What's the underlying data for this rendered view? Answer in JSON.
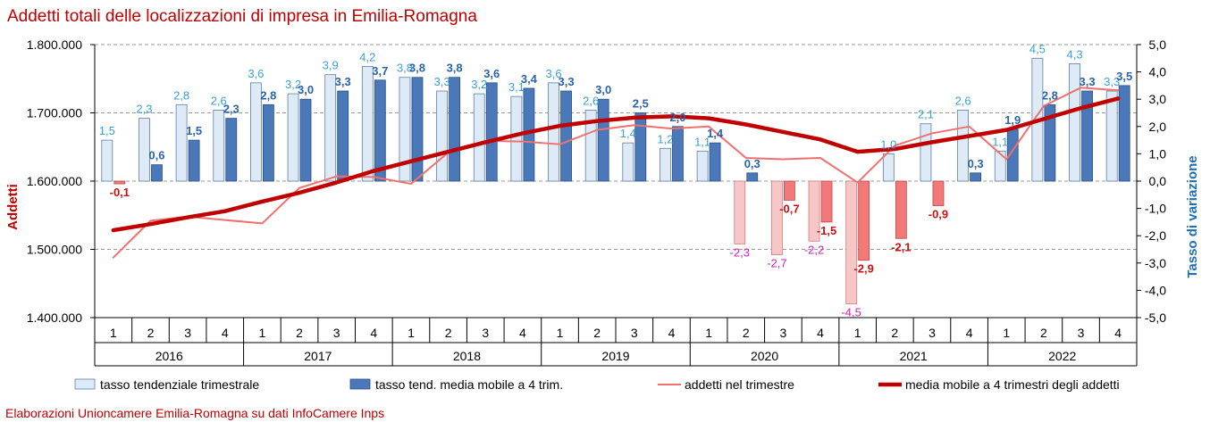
{
  "chart_data": {
    "type": "bar",
    "title": "Addetti totali delle localizzazioni di impresa in Emilia-Romagna",
    "ylabel": "Addetti",
    "y2label": "Tasso di variazione",
    "ylim": [
      1400000,
      1800000
    ],
    "y2lim": [
      -5,
      5
    ],
    "yticks": [
      "1.800.000",
      "1.700.000",
      "1.600.000",
      "1.500.000",
      "1.400.000"
    ],
    "y2ticks": [
      "5,0",
      "4,0",
      "3,0",
      "2,0",
      "1,0",
      "0,0",
      "-1,0",
      "-2,0",
      "-3,0",
      "-4,0",
      "-5,0"
    ],
    "quarters": [
      "1",
      "2",
      "3",
      "4",
      "1",
      "2",
      "3",
      "4",
      "1",
      "2",
      "3",
      "4",
      "1",
      "2",
      "3",
      "4",
      "1",
      "2",
      "3",
      "4",
      "1",
      "2",
      "3",
      "4",
      "1",
      "2",
      "3",
      "4"
    ],
    "years": [
      "2016",
      "2017",
      "2018",
      "2019",
      "2020",
      "2021",
      "2022"
    ],
    "grid": true,
    "legend_position": "bottom",
    "series": [
      {
        "name": "tasso tendenziale trimestrale",
        "kind": "bar",
        "axis": "right",
        "values": [
          1.5,
          2.3,
          2.8,
          2.6,
          3.6,
          3.2,
          3.9,
          4.2,
          3.8,
          3.3,
          3.2,
          3.1,
          3.6,
          2.6,
          1.4,
          1.2,
          1.1,
          -2.3,
          -2.7,
          -2.2,
          -4.5,
          1.0,
          2.1,
          2.6,
          1.1,
          4.5,
          4.3,
          3.3
        ],
        "labels": [
          "1,5",
          "2,3",
          "2,8",
          "2,6",
          "3,6",
          "3,2",
          "3,9",
          "4,2",
          "3,8",
          "3,3",
          "3,2",
          "3,1",
          "3,6",
          "2,6",
          "1,4",
          "1,2",
          "1,1",
          "-2,3",
          "-2,7",
          "-2,2",
          "-4,5",
          "1,0",
          "2,1",
          "2,6",
          "1,1",
          "4,5",
          "4,3",
          "3,3"
        ],
        "color_pos": "#deebf7",
        "color_neg": "#f7c6c6"
      },
      {
        "name": "tasso tend. media mobile a 4 trim.",
        "kind": "bar",
        "axis": "right",
        "values": [
          -0.1,
          0.6,
          1.5,
          2.3,
          2.8,
          3.0,
          3.3,
          3.7,
          3.8,
          3.8,
          3.6,
          3.4,
          3.3,
          3.0,
          2.5,
          2.0,
          1.4,
          0.3,
          -0.7,
          -1.5,
          -2.9,
          -2.1,
          -0.9,
          0.3,
          1.9,
          2.8,
          3.3,
          3.5
        ],
        "labels": [
          "-0,1",
          "0,6",
          "1,5",
          "2,3",
          "2,8",
          "3,0",
          "3,3",
          "3,7",
          "3,8",
          "3,8",
          "3,6",
          "3,4",
          "3,3",
          "3,0",
          "2,5",
          "2,0",
          "1,4",
          "0,3",
          "-0,7",
          "-1,5",
          "-2,9",
          "-2,1",
          "-0,9",
          "0,3",
          "1,9",
          "2,8",
          "3,3",
          "3,5"
        ],
        "color_pos": "#4a78b8",
        "color_neg": "#f27979"
      },
      {
        "name": "addetti nel trimestre",
        "kind": "line",
        "axis": "left",
        "values": [
          1488000,
          1542000,
          1548000,
          1543000,
          1538000,
          1590000,
          1607000,
          1606000,
          1596000,
          1642000,
          1659000,
          1658000,
          1654000,
          1675000,
          1682000,
          1677000,
          1680000,
          1634000,
          1632000,
          1634000,
          1598000,
          1652000,
          1670000,
          1680000,
          1632000,
          1710000,
          1737000,
          1733000
        ],
        "color": "#f07070"
      },
      {
        "name": "media mobile a 4 trimestri degli addetti",
        "kind": "line",
        "axis": "left",
        "values": [
          1528000,
          1537000,
          1547000,
          1556000,
          1570000,
          1583000,
          1598000,
          1615000,
          1629000,
          1643000,
          1657000,
          1670000,
          1681000,
          1688000,
          1693000,
          1695000,
          1692000,
          1683000,
          1672000,
          1661000,
          1643000,
          1647000,
          1657000,
          1666000,
          1675000,
          1691000,
          1707000,
          1721000
        ],
        "color": "#c00000"
      }
    ],
    "source_note": "Elaborazioni Unioncamere Emilia-Romagna su dati InfoCamere Inps"
  }
}
